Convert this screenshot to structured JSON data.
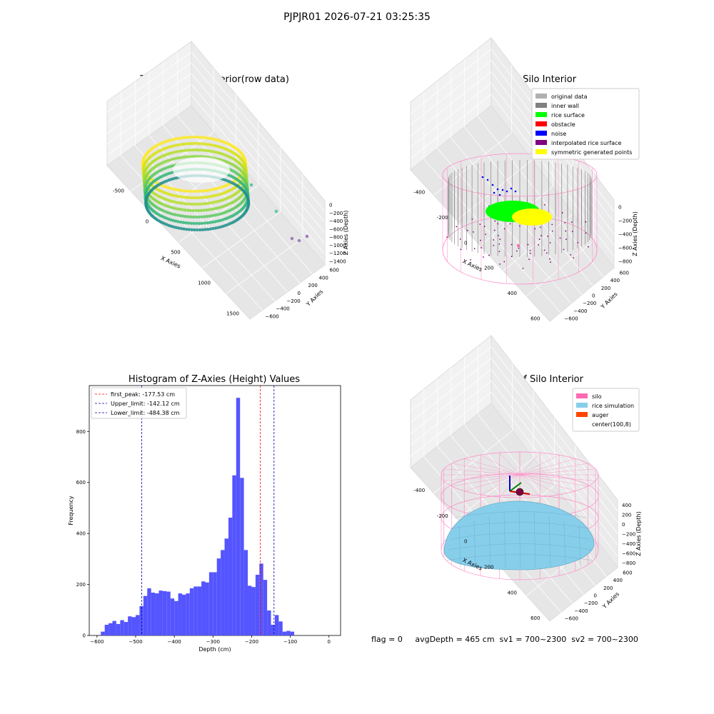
{
  "figure": {
    "title": "PJPJR01 2026-07-21 03:25:35",
    "status_text": "flag = 0     avgDepth = 465 cm  sv1 = 700~2300  sv2 = 700~2300"
  },
  "chart_data": [
    {
      "type": "scatter",
      "title": "3D Plot of Silo Interior(row data)",
      "xlabel": "X Axies",
      "ylabel": "Y Axies",
      "zlabel": "Z Axies (Depth)",
      "xticks": [
        "-500",
        "0",
        "500",
        "1000",
        "1500"
      ],
      "yticks": [
        "600",
        "400",
        "200",
        "0",
        "−200",
        "−400",
        "−600"
      ],
      "zticks": [
        "0",
        "−200",
        "−400",
        "−600",
        "−800",
        "−1000",
        "−1200",
        "−1400"
      ],
      "colormap": "viridis",
      "outliers": [
        {
          "x": 950,
          "y": -100,
          "z": -650
        },
        {
          "x": 1200,
          "y": -300,
          "z": -1000
        },
        {
          "x": 1500,
          "y": -450,
          "z": -1400
        },
        {
          "x": 1550,
          "y": -480,
          "z": -1420
        },
        {
          "x": 1600,
          "y": -500,
          "z": -1440
        }
      ]
    },
    {
      "type": "scatter",
      "title": "3D classify of Silo Interior",
      "xlabel": "X Axies",
      "ylabel": "Y Axies",
      "zlabel": "Z Axies (Depth)",
      "xticks": [
        "-400",
        "-200",
        "0",
        "200",
        "400",
        "600"
      ],
      "yticks": [
        "600",
        "400",
        "200",
        "0",
        "−200",
        "−400",
        "−600"
      ],
      "zticks": [
        "0",
        "−200",
        "−400",
        "−600",
        "−800"
      ],
      "legend_position": "top-right",
      "legend": [
        {
          "label": "original data",
          "color": "#b0b0b0"
        },
        {
          "label": "inner wall",
          "color": "#808080"
        },
        {
          "label": "rice surface",
          "color": "#00ff00"
        },
        {
          "label": "obstacle",
          "color": "#ff0000"
        },
        {
          "label": "noise",
          "color": "#0000ff"
        },
        {
          "label": "interpolated rice surface",
          "color": "#800080"
        },
        {
          "label": "symmetric generated points",
          "color": "#ffff00"
        }
      ]
    },
    {
      "type": "bar",
      "title": "Histogram of Z-Axies (Height) Values",
      "xlabel": "Depth (cm)",
      "ylabel": "Frequency",
      "xlim": [
        -620,
        30
      ],
      "ylim": [
        0,
        980
      ],
      "xticks": [
        -600,
        -500,
        -400,
        -300,
        -200,
        -100,
        0
      ],
      "yticks": [
        0,
        200,
        400,
        600,
        800
      ],
      "bin_width": 10,
      "bin_start": -590,
      "values": [
        15,
        42,
        48,
        57,
        45,
        60,
        53,
        75,
        72,
        80,
        115,
        155,
        185,
        168,
        165,
        176,
        174,
        172,
        145,
        135,
        165,
        160,
        165,
        185,
        192,
        192,
        212,
        208,
        248,
        248,
        302,
        335,
        380,
        462,
        628,
        932,
        618,
        335,
        195,
        190,
        238,
        282,
        218,
        98,
        42,
        80,
        55,
        15,
        18,
        15
      ],
      "bar_color": "#5555ff",
      "legend_position": "top-left",
      "lines": [
        {
          "label": "first_peak: -177.53 cm",
          "x": -177.53,
          "color": "#ff0000"
        },
        {
          "label": "Upper_limit: -142.12 cm",
          "x": -142.12,
          "color": "#0000aa"
        },
        {
          "label": "Lower_limit: -484.38 cm",
          "x": -484.38,
          "color": "#0000aa"
        }
      ]
    },
    {
      "type": "surface",
      "title": "3D simulation of Silo Interior",
      "xlabel": "X Axies",
      "ylabel": "Y Axies",
      "zlabel": "Z Axies (Depth)",
      "xticks": [
        "-400",
        "-200",
        "0",
        "200",
        "400",
        "600"
      ],
      "yticks": [
        "600",
        "400",
        "200",
        "0",
        "−200",
        "−400",
        "−600"
      ],
      "zticks": [
        "400",
        "200",
        "0",
        "−200",
        "−400",
        "−600",
        "−800"
      ],
      "legend_position": "top-right",
      "legend": [
        {
          "label": "silo",
          "color": "#ff69b4"
        },
        {
          "label": "rice simulation",
          "color": "#87ceeb"
        },
        {
          "label": "auger",
          "color": "#ff4500"
        },
        {
          "label": "center(100,8)",
          "color": "#ffffff"
        }
      ]
    }
  ]
}
